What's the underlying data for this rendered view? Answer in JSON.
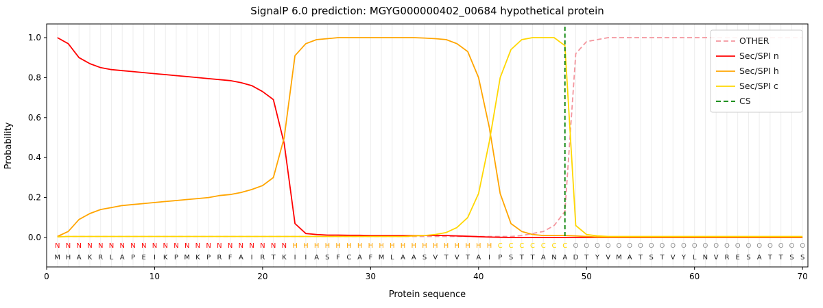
{
  "chart_data": {
    "type": "line",
    "title": "SignalP 6.0 prediction: MGYG000000402_00684 hypothetical protein",
    "xlabel": "Protein sequence",
    "ylabel": "Probability",
    "xlim": [
      0,
      70.5
    ],
    "ylim": [
      -0.15,
      1.07
    ],
    "xticks": [
      0,
      10,
      20,
      30,
      40,
      50,
      60,
      70
    ],
    "yticks": [
      0,
      0.2,
      0.4,
      0.6,
      0.8,
      1
    ],
    "grid": "one light vertical line per residue position",
    "legend_position": "upper right",
    "x_positions": {
      "start": 1,
      "end": 70,
      "note": "residue index along protein sequence"
    },
    "series": [
      {
        "name": "OTHER",
        "color": "#f4959d",
        "dash": true,
        "values": [
          0.005,
          0.005,
          0.005,
          0.005,
          0.005,
          0.005,
          0.005,
          0.005,
          0.005,
          0.005,
          0.005,
          0.005,
          0.005,
          0.005,
          0.005,
          0.005,
          0.005,
          0.005,
          0.005,
          0.005,
          0.005,
          0.005,
          0.005,
          0.005,
          0.005,
          0.005,
          0.005,
          0.005,
          0.005,
          0.005,
          0.005,
          0.005,
          0.005,
          0.005,
          0.005,
          0.005,
          0.005,
          0.005,
          0.005,
          0.005,
          0.005,
          0.005,
          0.005,
          0.01,
          0.02,
          0.03,
          0.06,
          0.13,
          0.92,
          0.98,
          0.99,
          1,
          1,
          1,
          1,
          1,
          1,
          1,
          1,
          1,
          1,
          1,
          1,
          1,
          1,
          1,
          1,
          1,
          1,
          1
        ]
      },
      {
        "name": "Sec/SPI n",
        "color": "#ff0000",
        "dash": false,
        "values": [
          1.0,
          0.97,
          0.9,
          0.87,
          0.85,
          0.84,
          0.835,
          0.83,
          0.825,
          0.82,
          0.815,
          0.81,
          0.805,
          0.8,
          0.795,
          0.79,
          0.785,
          0.775,
          0.76,
          0.73,
          0.69,
          0.47,
          0.07,
          0.02,
          0.015,
          0.012,
          0.012,
          0.011,
          0.011,
          0.01,
          0.01,
          0.01,
          0.01,
          0.01,
          0.01,
          0.01,
          0.01,
          0.008,
          0.006,
          0.004,
          0.002,
          0.001,
          0,
          0,
          0,
          0,
          0,
          0,
          0,
          0,
          0,
          0,
          0,
          0,
          0,
          0,
          0,
          0,
          0,
          0,
          0,
          0,
          0,
          0,
          0,
          0,
          0,
          0,
          0,
          0
        ]
      },
      {
        "name": "Sec/SPI h",
        "color": "#ffa500",
        "dash": false,
        "values": [
          0.005,
          0.03,
          0.09,
          0.12,
          0.14,
          0.15,
          0.16,
          0.165,
          0.17,
          0.175,
          0.18,
          0.185,
          0.19,
          0.195,
          0.2,
          0.21,
          0.215,
          0.225,
          0.24,
          0.26,
          0.3,
          0.5,
          0.91,
          0.97,
          0.99,
          0.995,
          1,
          1,
          1,
          1,
          1,
          1,
          1,
          1,
          0.998,
          0.995,
          0.99,
          0.97,
          0.93,
          0.8,
          0.55,
          0.22,
          0.07,
          0.03,
          0.015,
          0.01,
          0.01,
          0.01,
          0.008,
          0.005,
          0.002,
          0.002,
          0.002,
          0.002,
          0.002,
          0.002,
          0.002,
          0.002,
          0.002,
          0.002,
          0.002,
          0.002,
          0.002,
          0.002,
          0.002,
          0.002,
          0.002,
          0.002,
          0.002,
          0.002
        ]
      },
      {
        "name": "Sec/SPI c",
        "color": "#ffd700",
        "dash": false,
        "values": [
          0.003,
          0.005,
          0.005,
          0.005,
          0.005,
          0.005,
          0.005,
          0.005,
          0.005,
          0.005,
          0.005,
          0.005,
          0.005,
          0.005,
          0.005,
          0.005,
          0.005,
          0.005,
          0.005,
          0.005,
          0.005,
          0.005,
          0.005,
          0.005,
          0.005,
          0.005,
          0.005,
          0.005,
          0.005,
          0.005,
          0.005,
          0.005,
          0.005,
          0.008,
          0.01,
          0.015,
          0.025,
          0.05,
          0.1,
          0.22,
          0.48,
          0.8,
          0.94,
          0.99,
          1,
          1,
          1,
          0.96,
          0.06,
          0.015,
          0.008,
          0.005,
          0.005,
          0.005,
          0.005,
          0.005,
          0.005,
          0.005,
          0.005,
          0.005,
          0.005,
          0.005,
          0.005,
          0.005,
          0.005,
          0.005,
          0.005,
          0.005,
          0.005,
          0.005
        ]
      }
    ],
    "cs_marker": {
      "label": "CS",
      "position": 48,
      "color": "#008000",
      "dash": true
    },
    "sequence": "MHAKRLAPEIKPMKPRFAIRTKIIASFCAFMLAASVTVTAIPSTTANADTYVMATSTVYLNVRESATTSS",
    "regions": "NNNNNNNNNNNNNNNNNNNNNNHHHHHHHHHHHHHHHHHHHCCCCCCCOOOOOOOOOOOOOOOOOOOOOO",
    "region_colors": {
      "N": "#ff0000",
      "H": "#ffa500",
      "C": "#ffd700",
      "O": "#909090"
    },
    "legend_labels": [
      "OTHER",
      "Sec/SPI n",
      "Sec/SPI h",
      "Sec/SPI c",
      "CS"
    ]
  }
}
